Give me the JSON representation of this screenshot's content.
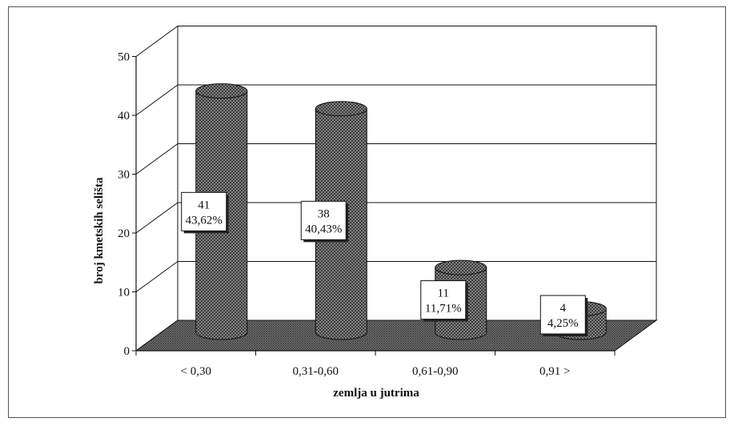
{
  "chart_data": {
    "type": "bar",
    "style": "3d-cylinder",
    "categories": [
      "< 0,30",
      "0,31-0,60",
      "0,61-0,90",
      "0,91 >"
    ],
    "values": [
      41,
      38,
      11,
      4
    ],
    "percent_labels": [
      "43,62%",
      "40,43%",
      "11,71%",
      "4,25%"
    ],
    "value_labels": [
      "41",
      "38",
      "11",
      "4"
    ],
    "xlabel": "zemlja u jutrima",
    "ylabel": "broj kmetskih selišta",
    "ylim": [
      0,
      50
    ],
    "yticks": [
      "0",
      "10",
      "20",
      "30",
      "40",
      "50"
    ],
    "grid": true,
    "legend": "none",
    "colors": {
      "bar": "#6a6a6a",
      "floor": "#7a7a7a",
      "line": "#111111",
      "background": "#ffffff"
    }
  }
}
